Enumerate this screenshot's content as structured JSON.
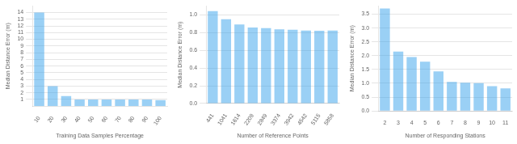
{
  "chart_data": [
    {
      "type": "bar",
      "categories": [
        "10",
        "20",
        "30",
        "40",
        "50",
        "60",
        "70",
        "80",
        "90",
        "100"
      ],
      "values": [
        14.0,
        3.0,
        1.5,
        1.0,
        1.0,
        1.0,
        1.0,
        1.0,
        1.0,
        0.9
      ],
      "xlabel": "Training Data Samples Percentage",
      "ylabel": "Median Distance Error (m)",
      "ylim": [
        0,
        15
      ],
      "yticks": [
        1,
        2,
        3,
        4,
        5,
        6,
        7,
        8,
        9,
        10,
        11,
        12,
        13,
        14
      ],
      "grid": "y"
    },
    {
      "type": "bar",
      "categories": [
        "441",
        "1041",
        "1614",
        "2209",
        "2849",
        "3374",
        "3942",
        "4542",
        "5115",
        "5858"
      ],
      "values": [
        1.04,
        0.95,
        0.89,
        0.855,
        0.85,
        0.835,
        0.832,
        0.822,
        0.82,
        0.822
      ],
      "xlabel": "Number of Reference Points",
      "ylabel": "Median Distance Error (m)",
      "ylim": [
        0.0,
        1.1
      ],
      "yticks": [
        {
          "value": 0.0,
          "label": "0.0"
        },
        0.2,
        0.4,
        0.6,
        0.8,
        {
          "value": 1.0,
          "label": "1.0"
        }
      ],
      "grid": "y"
    },
    {
      "type": "bar",
      "categories": [
        "2",
        "3",
        "4",
        "5",
        "6",
        "7",
        "8",
        "9",
        "10",
        "11"
      ],
      "values": [
        3.7,
        2.15,
        1.95,
        1.78,
        1.43,
        1.05,
        1.02,
        1.01,
        0.9,
        0.82
      ],
      "xlabel": "Number of Responding Stations",
      "ylabel": "Median Distance Error (m)",
      "ylim": [
        0.0,
        3.8
      ],
      "yticks": [
        {
          "value": 0.0,
          "label": "0.0"
        },
        0.5,
        {
          "value": 1.0,
          "label": "1.0"
        },
        1.5,
        {
          "value": 2.0,
          "label": "2.0"
        },
        2.5,
        {
          "value": 3.0,
          "label": "3.0"
        },
        3.5
      ],
      "grid": "y"
    }
  ]
}
